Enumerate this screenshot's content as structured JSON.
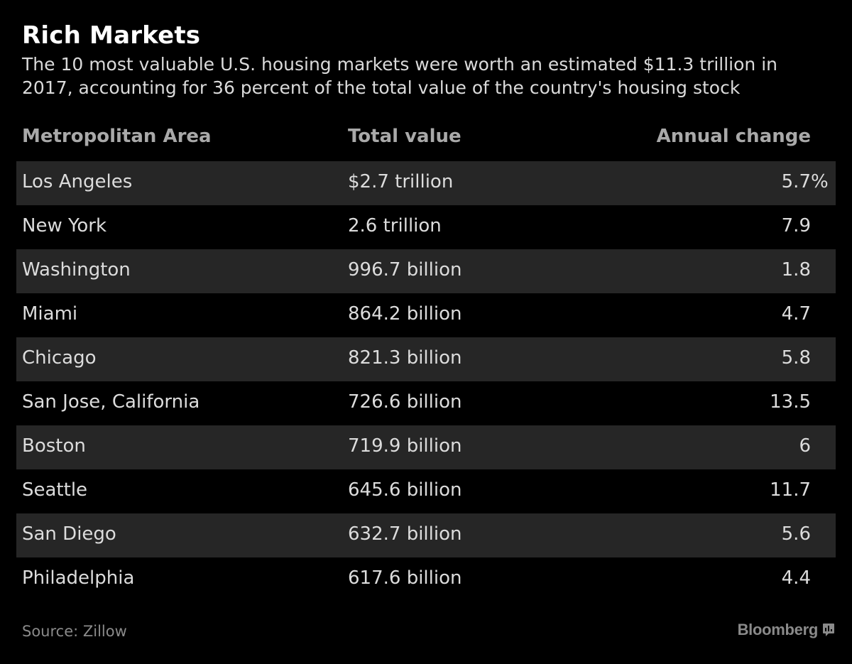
{
  "title": "Rich Markets",
  "subtitle": "The 10 most valuable U.S. housing markets were worth an estimated $11.3 trillion in 2017, accounting for 36 percent of the total value of the country's housing stock",
  "chart_data": {
    "type": "table",
    "columns": [
      "Metropolitan Area",
      "Total value",
      "Annual change"
    ],
    "rows": [
      {
        "area": "Los Angeles",
        "value": "$2.7 trillion",
        "change": "5.7",
        "change_unit": "%"
      },
      {
        "area": "New York",
        "value": "2.6 trillion",
        "change": "7.9"
      },
      {
        "area": "Washington",
        "value": "996.7 billion",
        "change": "1.8"
      },
      {
        "area": "Miami",
        "value": "864.2 billion",
        "change": "4.7"
      },
      {
        "area": "Chicago",
        "value": "821.3 billion",
        "change": "5.8"
      },
      {
        "area": "San Jose, California",
        "value": "726.6 billion",
        "change": "13.5"
      },
      {
        "area": "Boston",
        "value": "719.9 billion",
        "change": "6"
      },
      {
        "area": "Seattle",
        "value": "645.6 billion",
        "change": "11.7"
      },
      {
        "area": "San Diego",
        "value": "632.7 billion",
        "change": "5.6"
      },
      {
        "area": "Philadelphia",
        "value": "617.6 billion",
        "change": "4.4"
      }
    ]
  },
  "footer": {
    "source": "Source: Zillow",
    "brand": "Bloomberg",
    "brand_icon": "bloomberg-chart-icon"
  },
  "colors": {
    "background": "#000000",
    "row_shade": "#262626",
    "header_text": "#a9a9a9",
    "muted_text": "#8a8a8a"
  }
}
